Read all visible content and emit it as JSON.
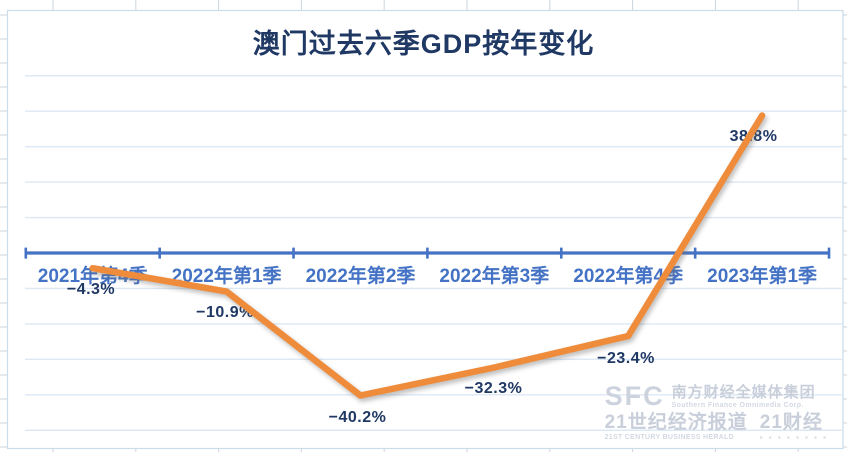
{
  "chart_data": {
    "type": "line",
    "title": "澳门过去六季GDP按年变化",
    "categories": [
      "2021年第4季",
      "2022年第1季",
      "2022年第2季",
      "2022年第3季",
      "2022年第4季",
      "2023年第1季"
    ],
    "values": [
      -4.3,
      -10.9,
      -40.2,
      -32.3,
      -23.4,
      38.8
    ],
    "point_labels": [
      "−4.3%",
      "−10.9%",
      "−40.2%",
      "−32.3%",
      "−23.4%",
      "38.8%"
    ],
    "unit": "%",
    "ylim": [
      -50,
      50
    ],
    "grid": "on",
    "grid_step": 10,
    "legend": "none",
    "xlabel": "",
    "ylabel": "",
    "colors": {
      "line": "#EF8C3B",
      "axis": "#4472C4",
      "category_label": "#4472C4",
      "data_label": "#1F3864",
      "title": "#1F3864",
      "gridline": "#DCE8F4",
      "frame": "#C9DDEB",
      "outer_tick": "#CBD5DF"
    }
  },
  "watermark": {
    "logo": "SFC",
    "org_cn": "南方财经全媒体集团",
    "org_en": "Southern Finance Omnimedia Corp.",
    "brand_cn": "21世纪经济报道",
    "brand2_cn": "21财经",
    "brand_en": "21ST CENTURY BUSINESS HERALD",
    "badges": "▪ ▪ ▪ ▪ ▪ ▪ ▪ ▪"
  }
}
